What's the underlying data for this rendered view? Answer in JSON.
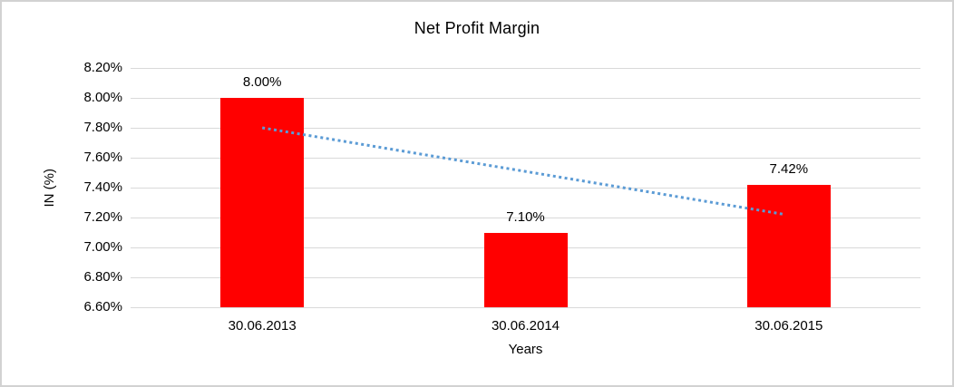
{
  "chart_data": {
    "type": "bar",
    "title": "Net Profit Margin",
    "xlabel": "Years",
    "ylabel": "IN (%)",
    "categories": [
      "30.06.2013",
      "30.06.2014",
      "30.06.2015"
    ],
    "values": [
      8.0,
      7.1,
      7.42
    ],
    "data_labels": [
      "8.00%",
      "7.10%",
      "7.42%"
    ],
    "ylim": [
      6.6,
      8.2
    ],
    "yticks": [
      {
        "value": 8.2,
        "label": "8.20%"
      },
      {
        "value": 8.0,
        "label": "8.00%"
      },
      {
        "value": 7.8,
        "label": "7.80%"
      },
      {
        "value": 7.6,
        "label": "7.60%"
      },
      {
        "value": 7.4,
        "label": "7.40%"
      },
      {
        "value": 7.2,
        "label": "7.20%"
      },
      {
        "value": 7.0,
        "label": "7.00%"
      },
      {
        "value": 6.8,
        "label": "6.80%"
      },
      {
        "value": 6.6,
        "label": "6.60%"
      }
    ],
    "grid": true,
    "legend": false,
    "bar_color": "#FF0000",
    "trendline": {
      "style": "dotted",
      "color": "#5B9BD5",
      "from": {
        "category_index": 0,
        "value": 7.8
      },
      "to": {
        "category_index": 2,
        "value": 7.22
      }
    },
    "colors": {
      "gridline": "#D9D9D9",
      "text": "#000000",
      "background": "#FFFFFF",
      "figure_border": "#D2D2D2"
    }
  }
}
